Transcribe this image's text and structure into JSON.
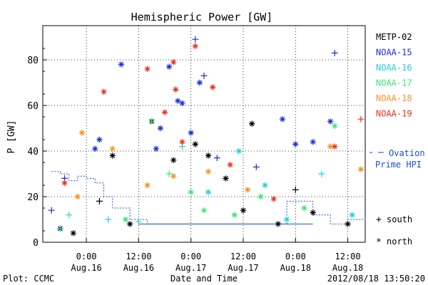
{
  "chart_data": {
    "type": "scatter",
    "title": "Hemispheric Power [GW]",
    "ylabel": "P [GW]",
    "xlabel": "Date and Time",
    "ylim": [
      0,
      95
    ],
    "xlim": [
      "2012-08-15 14:00",
      "2012-08-18 16:00"
    ],
    "x_ticks": [
      {
        "t": "2012-08-16 00:00",
        "time": "0:00",
        "date": "Aug.16"
      },
      {
        "t": "2012-08-16 12:00",
        "time": "12:00",
        "date": "Aug.16"
      },
      {
        "t": "2012-08-17 00:00",
        "time": "0:00",
        "date": "Aug.17"
      },
      {
        "t": "2012-08-17 12:00",
        "time": "12:00",
        "date": "Aug.17"
      },
      {
        "t": "2012-08-18 00:00",
        "time": "0:00",
        "date": "Aug.18"
      },
      {
        "t": "2012-08-18 12:00",
        "time": "12:00",
        "date": "Aug.18"
      }
    ],
    "y_ticks": [
      0,
      20,
      40,
      60,
      80
    ],
    "grid": "dotted",
    "legend_position": "right",
    "series": [
      {
        "name": "METP-02",
        "color": "#000000",
        "points": [
          {
            "t": "2012-08-15 18:00",
            "v": 6,
            "m": "*"
          },
          {
            "t": "2012-08-15 21:00",
            "v": 4,
            "m": "*"
          },
          {
            "t": "2012-08-16 03:00",
            "v": 18,
            "m": "+"
          },
          {
            "t": "2012-08-16 06:00",
            "v": 38,
            "m": "*"
          },
          {
            "t": "2012-08-16 10:00",
            "v": 8,
            "m": "*"
          },
          {
            "t": "2012-08-16 15:00",
            "v": 53,
            "m": "*"
          },
          {
            "t": "2012-08-16 20:00",
            "v": 36,
            "m": "*"
          },
          {
            "t": "2012-08-17 01:00",
            "v": 43,
            "m": "*"
          },
          {
            "t": "2012-08-17 04:00",
            "v": 38,
            "m": "*"
          },
          {
            "t": "2012-08-17 08:00",
            "v": 28,
            "m": "*"
          },
          {
            "t": "2012-08-17 12:00",
            "v": 14,
            "m": "*"
          },
          {
            "t": "2012-08-17 14:00",
            "v": 52,
            "m": "*"
          },
          {
            "t": "2012-08-17 20:00",
            "v": 8,
            "m": "*"
          },
          {
            "t": "2012-08-18 00:00",
            "v": 23,
            "m": "+"
          },
          {
            "t": "2012-08-18 04:00",
            "v": 13,
            "m": "*"
          },
          {
            "t": "2012-08-18 12:00",
            "v": 8,
            "m": "*"
          }
        ]
      },
      {
        "name": "NOAA-15",
        "color": "#1a2fd6",
        "points": [
          {
            "t": "2012-08-15 16:00",
            "v": 14,
            "m": "+"
          },
          {
            "t": "2012-08-15 19:00",
            "v": 28,
            "m": "+"
          },
          {
            "t": "2012-08-16 02:00",
            "v": 41,
            "m": "*"
          },
          {
            "t": "2012-08-16 03:00",
            "v": 45,
            "m": "*"
          },
          {
            "t": "2012-08-16 08:00",
            "v": 78,
            "m": "*"
          },
          {
            "t": "2012-08-16 16:00",
            "v": 41,
            "m": "*"
          },
          {
            "t": "2012-08-16 17:00",
            "v": 50,
            "m": "*"
          },
          {
            "t": "2012-08-16 19:00",
            "v": 77,
            "m": "*"
          },
          {
            "t": "2012-08-16 21:00",
            "v": 62,
            "m": "*"
          },
          {
            "t": "2012-08-16 22:00",
            "v": 61,
            "m": "*"
          },
          {
            "t": "2012-08-17 00:00",
            "v": 48,
            "m": "*"
          },
          {
            "t": "2012-08-17 01:00",
            "v": 89,
            "m": "+"
          },
          {
            "t": "2012-08-17 02:00",
            "v": 70,
            "m": "*"
          },
          {
            "t": "2012-08-17 03:00",
            "v": 73,
            "m": "+"
          },
          {
            "t": "2012-08-17 06:00",
            "v": 37,
            "m": "+"
          },
          {
            "t": "2012-08-17 15:00",
            "v": 33,
            "m": "+"
          },
          {
            "t": "2012-08-17 21:00",
            "v": 54,
            "m": "*"
          },
          {
            "t": "2012-08-18 00:00",
            "v": 43,
            "m": "*"
          },
          {
            "t": "2012-08-18 04:00",
            "v": 44,
            "m": "*"
          },
          {
            "t": "2012-08-18 08:00",
            "v": 53,
            "m": "*"
          },
          {
            "t": "2012-08-18 09:00",
            "v": 83,
            "m": "+"
          }
        ]
      },
      {
        "name": "NOAA-16",
        "color": "#22d0e0",
        "points": [
          {
            "t": "2012-08-15 18:00",
            "v": 6,
            "m": "+"
          },
          {
            "t": "2012-08-16 05:00",
            "v": 10,
            "m": "+"
          },
          {
            "t": "2012-08-16 12:00",
            "v": 9,
            "m": "+"
          },
          {
            "t": "2012-08-16 22:00",
            "v": 42,
            "m": "+"
          },
          {
            "t": "2012-08-17 04:00",
            "v": 22,
            "m": "*"
          },
          {
            "t": "2012-08-17 11:00",
            "v": 40,
            "m": "*"
          },
          {
            "t": "2012-08-17 17:00",
            "v": 25,
            "m": "*"
          },
          {
            "t": "2012-08-17 22:00",
            "v": 10,
            "m": "*"
          },
          {
            "t": "2012-08-18 06:00",
            "v": 30,
            "m": "+"
          },
          {
            "t": "2012-08-18 13:00",
            "v": 12,
            "m": "*"
          }
        ]
      },
      {
        "name": "NOAA-17",
        "color": "#3ee57a",
        "points": [
          {
            "t": "2012-08-15 20:00",
            "v": 12,
            "m": "+"
          },
          {
            "t": "2012-08-16 09:00",
            "v": 10,
            "m": "*"
          },
          {
            "t": "2012-08-16 15:00",
            "v": 53,
            "m": "+"
          },
          {
            "t": "2012-08-16 19:00",
            "v": 30,
            "m": "+"
          },
          {
            "t": "2012-08-17 00:00",
            "v": 22,
            "m": "*"
          },
          {
            "t": "2012-08-17 03:00",
            "v": 14,
            "m": "*"
          },
          {
            "t": "2012-08-17 10:00",
            "v": 12,
            "m": "*"
          },
          {
            "t": "2012-08-17 16:00",
            "v": 20,
            "m": "*"
          },
          {
            "t": "2012-08-18 02:00",
            "v": 15,
            "m": "*"
          },
          {
            "t": "2012-08-18 09:00",
            "v": 51,
            "m": "*"
          }
        ]
      },
      {
        "name": "NOAA-18",
        "color": "#f59222",
        "points": [
          {
            "t": "2012-08-15 22:00",
            "v": 20,
            "m": "*"
          },
          {
            "t": "2012-08-15 23:00",
            "v": 48,
            "m": "*"
          },
          {
            "t": "2012-08-16 06:00",
            "v": 41,
            "m": "*"
          },
          {
            "t": "2012-08-16 14:00",
            "v": 25,
            "m": "*"
          },
          {
            "t": "2012-08-16 20:00",
            "v": 29,
            "m": "*"
          },
          {
            "t": "2012-08-17 04:00",
            "v": 31,
            "m": "*"
          },
          {
            "t": "2012-08-17 13:00",
            "v": 23,
            "m": "*"
          },
          {
            "t": "2012-08-18 08:00",
            "v": 42,
            "m": "*"
          },
          {
            "t": "2012-08-18 15:00",
            "v": 32,
            "m": "*"
          }
        ]
      },
      {
        "name": "NOAA-19",
        "color": "#e8301a",
        "points": [
          {
            "t": "2012-08-15 19:00",
            "v": 26,
            "m": "*"
          },
          {
            "t": "2012-08-16 04:00",
            "v": 66,
            "m": "*"
          },
          {
            "t": "2012-08-16 14:00",
            "v": 76,
            "m": "*"
          },
          {
            "t": "2012-08-16 18:00",
            "v": 57,
            "m": "*"
          },
          {
            "t": "2012-08-16 20:00",
            "v": 79,
            "m": "*"
          },
          {
            "t": "2012-08-16 20:30",
            "v": 67,
            "m": "*"
          },
          {
            "t": "2012-08-16 22:00",
            "v": 44,
            "m": "*"
          },
          {
            "t": "2012-08-17 01:00",
            "v": 86,
            "m": "*"
          },
          {
            "t": "2012-08-17 05:00",
            "v": 68,
            "m": "*"
          },
          {
            "t": "2012-08-17 09:00",
            "v": 34,
            "m": "*"
          },
          {
            "t": "2012-08-17 19:00",
            "v": 19,
            "m": "*"
          },
          {
            "t": "2012-08-18 09:00",
            "v": 42,
            "m": "*"
          },
          {
            "t": "2012-08-18 15:00",
            "v": 54,
            "m": "+"
          }
        ]
      }
    ],
    "ovation": {
      "name": "Ovation Prime HPI",
      "color": "#1a4fd6",
      "points": [
        {
          "t": "2012-08-15 16:00",
          "v": 31
        },
        {
          "t": "2012-08-15 18:00",
          "v": 30
        },
        {
          "t": "2012-08-15 20:00",
          "v": 27
        },
        {
          "t": "2012-08-15 22:00",
          "v": 29
        },
        {
          "t": "2012-08-16 00:00",
          "v": 28
        },
        {
          "t": "2012-08-16 02:00",
          "v": 26
        },
        {
          "t": "2012-08-16 04:00",
          "v": 20
        },
        {
          "t": "2012-08-16 06:00",
          "v": 15
        },
        {
          "t": "2012-08-16 10:00",
          "v": 10
        },
        {
          "t": "2012-08-16 14:00",
          "v": 8
        },
        {
          "t": "2012-08-17 12:00",
          "v": 8
        },
        {
          "t": "2012-08-17 22:00",
          "v": 18
        },
        {
          "t": "2012-08-18 04:00",
          "v": 12
        },
        {
          "t": "2012-08-18 08:00",
          "v": 8
        },
        {
          "t": "2012-08-18 12:00",
          "v": 10
        },
        {
          "t": "2012-08-18 16:00",
          "v": 11
        }
      ]
    },
    "annotations": {
      "ovation_label_line1": "Ovation",
      "ovation_label_line2": "Prime HPI",
      "marker_south_symbol": "+",
      "marker_south_label": "south",
      "marker_north_symbol": "*",
      "marker_north_label": "north"
    }
  },
  "footer": {
    "plot_credit": "Plot: CCMC",
    "timestamp": "2012/08/18 13:50:20"
  }
}
